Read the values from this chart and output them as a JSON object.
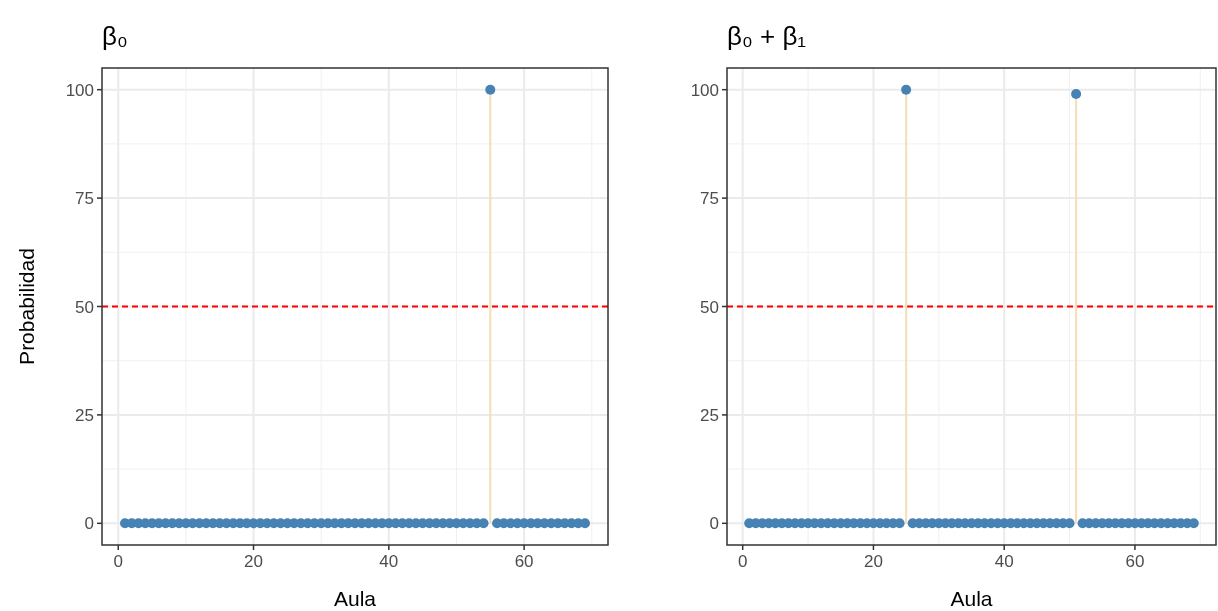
{
  "chart_data": [
    {
      "type": "lollipop",
      "title": "β₀",
      "xlabel": "Aula",
      "ylabel": "Probabilidad",
      "xlim": [
        -2.4,
        72.4
      ],
      "xticks": [
        0,
        20,
        40,
        60
      ],
      "ylim": [
        -5,
        105
      ],
      "yticks": [
        0,
        25,
        50,
        75,
        100
      ],
      "grid": true,
      "marker": "circle",
      "x": [
        1,
        2,
        3,
        4,
        5,
        6,
        7,
        8,
        9,
        10,
        11,
        12,
        13,
        14,
        15,
        16,
        17,
        18,
        19,
        20,
        21,
        22,
        23,
        24,
        25,
        26,
        27,
        28,
        29,
        30,
        31,
        32,
        33,
        34,
        35,
        36,
        37,
        38,
        39,
        40,
        41,
        42,
        43,
        44,
        45,
        46,
        47,
        48,
        49,
        50,
        51,
        52,
        53,
        54,
        55,
        56,
        57,
        58,
        59,
        60,
        61,
        62,
        63,
        64,
        65,
        66,
        67,
        68,
        69
      ],
      "series": [
        {
          "color": "#4682b4",
          "values": [
            0,
            0,
            0,
            0,
            0,
            0,
            0,
            0,
            0,
            0,
            0,
            0,
            0,
            0,
            0,
            0,
            0,
            0,
            0,
            0,
            0,
            0,
            0,
            0,
            0,
            0,
            0,
            0,
            0,
            0,
            0,
            0,
            0,
            0,
            0,
            0,
            0,
            0,
            0,
            0,
            0,
            0,
            0,
            0,
            0,
            0,
            0,
            0,
            0,
            0,
            0,
            0,
            0,
            0,
            100,
            0,
            0,
            0,
            0,
            0,
            0,
            0,
            0,
            0,
            0,
            0,
            0,
            0,
            0
          ]
        }
      ],
      "ref_lines": [
        {
          "axis": "y",
          "value": 50,
          "color": "#ff0000",
          "line_style": "dashed"
        }
      ]
    },
    {
      "type": "lollipop",
      "title": "β₀ + β₁",
      "xlabel": "Aula",
      "xlim": [
        -2.4,
        72.4
      ],
      "xticks": [
        0,
        20,
        40,
        60
      ],
      "ylim": [
        -5,
        105
      ],
      "yticks": [
        0,
        25,
        50,
        75,
        100
      ],
      "grid": true,
      "marker": "circle",
      "x": [
        1,
        2,
        3,
        4,
        5,
        6,
        7,
        8,
        9,
        10,
        11,
        12,
        13,
        14,
        15,
        16,
        17,
        18,
        19,
        20,
        21,
        22,
        23,
        24,
        25,
        26,
        27,
        28,
        29,
        30,
        31,
        32,
        33,
        34,
        35,
        36,
        37,
        38,
        39,
        40,
        41,
        42,
        43,
        44,
        45,
        46,
        47,
        48,
        49,
        50,
        51,
        52,
        53,
        54,
        55,
        56,
        57,
        58,
        59,
        60,
        61,
        62,
        63,
        64,
        65,
        66,
        67,
        68,
        69
      ],
      "series": [
        {
          "color": "#4682b4",
          "values": [
            0,
            0,
            0,
            0,
            0,
            0,
            0,
            0,
            0,
            0,
            0,
            0,
            0,
            0,
            0,
            0,
            0,
            0,
            0,
            0,
            0,
            0,
            0,
            0,
            100,
            0,
            0,
            0,
            0,
            0,
            0,
            0,
            0,
            0,
            0,
            0,
            0,
            0,
            0,
            0,
            0,
            0,
            0,
            0,
            0,
            0,
            0,
            0,
            0,
            0,
            99,
            0,
            0,
            0,
            0,
            0,
            0,
            0,
            0,
            0,
            0,
            0,
            0,
            0,
            0,
            0,
            0,
            0,
            0
          ]
        }
      ],
      "ref_lines": [
        {
          "axis": "y",
          "value": 50,
          "color": "#ff0000",
          "line_style": "dashed"
        }
      ]
    }
  ]
}
